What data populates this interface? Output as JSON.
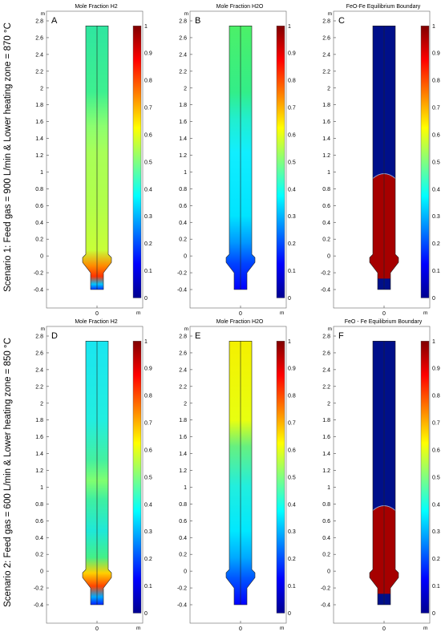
{
  "colormap": [
    "#00008f",
    "#0000ff",
    "#0080ff",
    "#00ffff",
    "#80ff80",
    "#ffff00",
    "#ff8000",
    "#ff0000",
    "#800000"
  ],
  "panel_colors": {
    "blue": "#1a1aff",
    "dark_blue": "#000f8a",
    "dark_red": "#a60000",
    "outline": "#222222"
  },
  "axis_units": {
    "x": "m",
    "y": "m"
  },
  "y_ticks": [
    "2.8",
    "2.6",
    "2.4",
    "2.2",
    "2",
    "1.8",
    "1.6",
    "1.4",
    "1.2",
    "1",
    "0.8",
    "0.6",
    "0.4",
    "0.2",
    "0",
    "-0.2",
    "-0.4"
  ],
  "x_tick": "0",
  "colorbar_ticks": [
    "1",
    "0.9",
    "0.8",
    "0.7",
    "0.6",
    "0.5",
    "0.4",
    "0.3",
    "0.2",
    "0.1",
    "0"
  ],
  "scenarios": [
    {
      "label": "Scenario 1: Feed gas = 900 L/min & Lower heating zone = 870 °C",
      "panels": [
        {
          "letter": "A",
          "title": "Mole Fraction H2",
          "column_colors": [
            [
              0,
              "#2fe6a0"
            ],
            [
              0.25,
              "#3df090"
            ],
            [
              0.38,
              "#8cff70"
            ],
            [
              0.48,
              "#a8ff58"
            ],
            [
              0.68,
              "#b2ff4a"
            ],
            [
              0.85,
              "#c8ff38"
            ],
            [
              0.91,
              "#ff8a00"
            ],
            [
              0.95,
              "#ff3300"
            ],
            [
              0.98,
              "#00c6ff"
            ],
            [
              1,
              "#0033ff"
            ]
          ],
          "boundary_level": null
        },
        {
          "letter": "B",
          "title": "Mole Fraction H2O",
          "column_colors": [
            [
              0,
              "#4cf068"
            ],
            [
              0.25,
              "#33ee88"
            ],
            [
              0.35,
              "#22eecc"
            ],
            [
              0.48,
              "#11eeff"
            ],
            [
              0.72,
              "#00e4ff"
            ],
            [
              0.82,
              "#0099ff"
            ],
            [
              0.9,
              "#0044ff"
            ],
            [
              1,
              "#0000ff"
            ]
          ],
          "boundary_level": null
        },
        {
          "letter": "C",
          "title": "FeO-Fe Equilibrium Boundary",
          "column_colors": [],
          "boundary_level": 0.98
        }
      ]
    },
    {
      "label": "Scenario 2: Feed gas = 600 L/min & Lower heating zone = 850 °C",
      "panels": [
        {
          "letter": "D",
          "title": "Mole Fraction H2",
          "column_colors": [
            [
              0,
              "#1ae6f0"
            ],
            [
              0.3,
              "#22eee0"
            ],
            [
              0.45,
              "#44f0a0"
            ],
            [
              0.53,
              "#80ff70"
            ],
            [
              0.6,
              "#3ff0a0"
            ],
            [
              0.72,
              "#1ee8d8"
            ],
            [
              0.82,
              "#44f088"
            ],
            [
              0.88,
              "#ffd000"
            ],
            [
              0.93,
              "#ff4400"
            ],
            [
              0.97,
              "#00aaff"
            ],
            [
              1,
              "#0022ff"
            ]
          ],
          "boundary_level": null
        },
        {
          "letter": "E",
          "title": "Mole Fraction H2O",
          "column_colors": [
            [
              0,
              "#f4f000"
            ],
            [
              0.3,
              "#e8ff10"
            ],
            [
              0.4,
              "#66f080"
            ],
            [
              0.55,
              "#22eedd"
            ],
            [
              0.72,
              "#00e8ff"
            ],
            [
              0.82,
              "#00aaff"
            ],
            [
              0.9,
              "#0055ff"
            ],
            [
              1,
              "#0000ff"
            ]
          ],
          "boundary_level": null
        },
        {
          "letter": "F",
          "title": "FeO - Fe Equilibrium Boundary",
          "column_colors": [],
          "boundary_level": 0.78
        }
      ]
    }
  ]
}
